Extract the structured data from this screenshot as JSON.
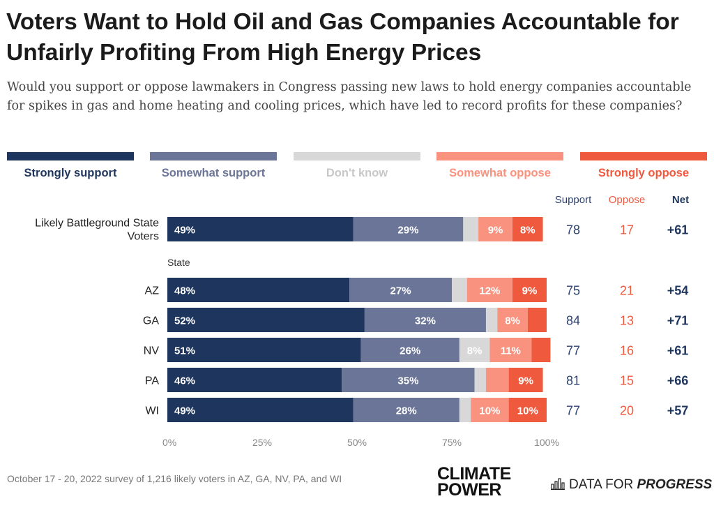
{
  "title": "Voters Want to Hold Oil and Gas Companies Accountable for Unfairly Profiting From High Energy Prices",
  "subtitle": "Would you support or oppose lawmakers in Congress passing new laws to hold energy companies accountable for spikes in gas and home heating and cooling prices, which have led to record profits for these companies?",
  "legend": [
    {
      "label": "Strongly support",
      "color": "#1e355e"
    },
    {
      "label": "Somewhat support",
      "color": "#6b7597"
    },
    {
      "label": "Don't know",
      "color": "#d8d8d8"
    },
    {
      "label": "Somewhat oppose",
      "color": "#f9927e"
    },
    {
      "label": "Strongly oppose",
      "color": "#ef5a3f"
    }
  ],
  "columns": {
    "support": "Support",
    "oppose": "Oppose",
    "net": "Net"
  },
  "group_label": "State",
  "chart_data": {
    "type": "bar",
    "orientation": "horizontal",
    "stacked": true,
    "categories": [
      "Likely Battleground State Voters",
      "AZ",
      "GA",
      "NV",
      "PA",
      "WI"
    ],
    "series": [
      {
        "name": "Strongly support",
        "values": [
          49,
          48,
          52,
          51,
          46,
          49
        ],
        "labels": [
          "49%",
          "48%",
          "52%",
          "51%",
          "46%",
          "49%"
        ]
      },
      {
        "name": "Somewhat support",
        "values": [
          29,
          27,
          32,
          26,
          35,
          28
        ],
        "labels": [
          "29%",
          "27%",
          "32%",
          "26%",
          "35%",
          "28%"
        ]
      },
      {
        "name": "Don't know",
        "values": [
          4,
          4,
          3,
          8,
          3,
          3
        ],
        "labels": [
          "",
          "",
          "",
          "8%",
          "",
          ""
        ]
      },
      {
        "name": "Somewhat oppose",
        "values": [
          9,
          12,
          8,
          11,
          6,
          10
        ],
        "labels": [
          "9%",
          "12%",
          "8%",
          "11%",
          "",
          "10%"
        ]
      },
      {
        "name": "Strongly oppose",
        "values": [
          8,
          9,
          5,
          5,
          9,
          10
        ],
        "labels": [
          "8%",
          "9%",
          "",
          "",
          "9%",
          "10%"
        ]
      }
    ],
    "support": [
      "78",
      "75",
      "84",
      "77",
      "81",
      "77"
    ],
    "oppose": [
      "17",
      "21",
      "13",
      "16",
      "15",
      "20"
    ],
    "net": [
      "+61",
      "+54",
      "+71",
      "+61",
      "+66",
      "+57"
    ],
    "xlim": [
      0,
      100
    ],
    "xticks": [
      "0%",
      "25%",
      "50%",
      "75%",
      "100%"
    ],
    "grid": false,
    "legend_position": "top"
  },
  "footer": {
    "note": "October 17 - 20, 2022 survey of 1,216 likely voters in AZ, GA, NV, PA, and WI",
    "logo_climate_power": [
      "CLIMATE",
      "POWER"
    ],
    "logo_dfp_prefix": "DATA FOR ",
    "logo_dfp_strong": "PROGRESS",
    "logo_dfp_icon": "bar-chart-icon"
  }
}
